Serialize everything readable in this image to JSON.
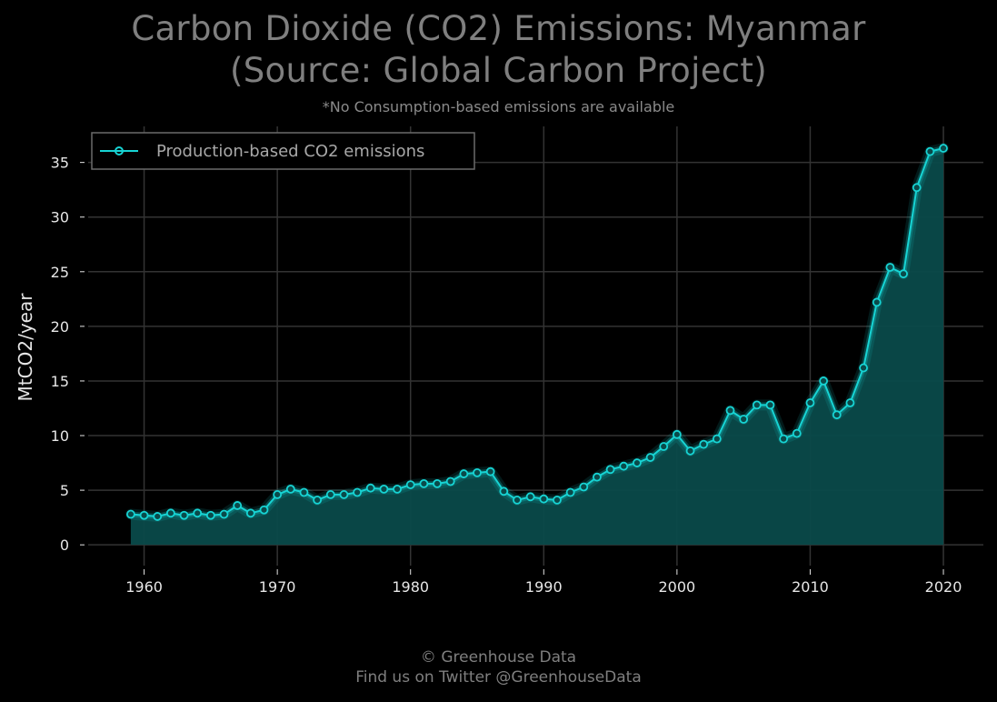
{
  "title_line1": "Carbon Dioxide (CO2) Emissions: Myanmar",
  "title_line2": "(Source: Global Carbon Project)",
  "subtitle": "*No Consumption-based emissions are available",
  "footer_line1": "© Greenhouse Data",
  "footer_line2": "Find us on Twitter @GreenhouseData",
  "colors": {
    "background": "#000000",
    "series": "#17d4d4",
    "fill": "#0a4a4a",
    "grid": "#333333",
    "text": "#7f7f7f"
  },
  "chart_data": {
    "type": "area",
    "title": "Carbon Dioxide (CO2) Emissions: Myanmar (Source: Global Carbon Project)",
    "ylabel": "MtCO2/year",
    "xlabel": "",
    "xlim": [
      1955.8,
      2023
    ],
    "ylim": [
      -1.9,
      38.3
    ],
    "xticks": [
      1960,
      1970,
      1980,
      1990,
      2000,
      2010,
      2020
    ],
    "yticks": [
      0,
      5,
      10,
      15,
      20,
      25,
      30,
      35
    ],
    "grid": true,
    "legend_position": "top-left",
    "series": [
      {
        "name": "Production-based CO2 emissions",
        "x": [
          1959,
          1960,
          1961,
          1962,
          1963,
          1964,
          1965,
          1966,
          1967,
          1968,
          1969,
          1970,
          1971,
          1972,
          1973,
          1974,
          1975,
          1976,
          1977,
          1978,
          1979,
          1980,
          1981,
          1982,
          1983,
          1984,
          1985,
          1986,
          1987,
          1988,
          1989,
          1990,
          1991,
          1992,
          1993,
          1994,
          1995,
          1996,
          1997,
          1998,
          1999,
          2000,
          2001,
          2002,
          2003,
          2004,
          2005,
          2006,
          2007,
          2008,
          2009,
          2010,
          2011,
          2012,
          2013,
          2014,
          2015,
          2016,
          2017,
          2018,
          2019,
          2020
        ],
        "y": [
          2.8,
          2.7,
          2.6,
          2.9,
          2.7,
          2.9,
          2.7,
          2.8,
          3.6,
          2.9,
          3.2,
          4.6,
          5.1,
          4.8,
          4.1,
          4.6,
          4.6,
          4.8,
          5.2,
          5.1,
          5.1,
          5.5,
          5.6,
          5.6,
          5.8,
          6.5,
          6.6,
          6.7,
          4.9,
          4.1,
          4.4,
          4.2,
          4.1,
          4.8,
          5.3,
          6.2,
          6.9,
          7.2,
          7.5,
          8.0,
          9.0,
          10.1,
          8.6,
          9.2,
          9.7,
          12.3,
          11.5,
          12.8,
          12.8,
          9.7,
          10.2,
          13.0,
          15.0,
          11.9,
          13.0,
          16.2,
          22.2,
          25.4,
          24.8,
          32.7,
          36.0,
          36.3
        ]
      }
    ]
  }
}
